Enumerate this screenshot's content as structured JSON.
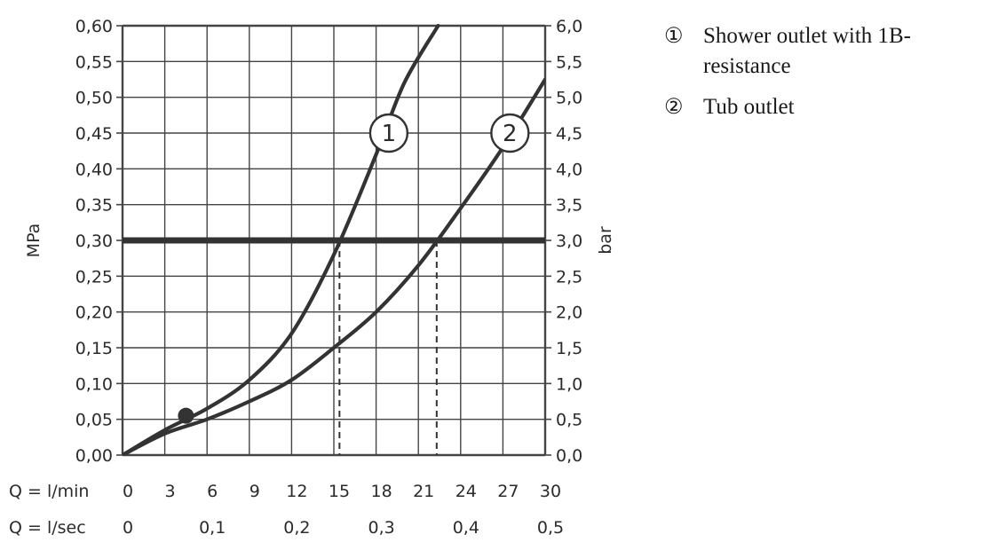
{
  "chart_data": {
    "type": "line",
    "ylabel_left": "MPa",
    "ylabel_right": "bar",
    "ylim": [
      0,
      0.6
    ],
    "xlim": [
      0,
      30
    ],
    "y_ticks_left": [
      "0,00",
      "0,05",
      "0,10",
      "0,15",
      "0,20",
      "0,25",
      "0,30",
      "0,35",
      "0,40",
      "0,45",
      "0,50",
      "0,55",
      "0,60"
    ],
    "y_ticks_right": [
      "0,0",
      "0,5",
      "1,0",
      "1,5",
      "2,0",
      "2,5",
      "3,0",
      "3,5",
      "4,0",
      "4,5",
      "5,0",
      "5,5",
      "6,0"
    ],
    "x_row1_label": "Q = l/min",
    "x_row1_ticks": [
      "0",
      "3",
      "6",
      "9",
      "12",
      "15",
      "18",
      "21",
      "24",
      "27",
      "30"
    ],
    "x_row2_label": "Q = l/sec",
    "x_row2_ticks": [
      {
        "label": "0",
        "x": 0
      },
      {
        "label": "0,1",
        "x": 6
      },
      {
        "label": "0,2",
        "x": 12
      },
      {
        "label": "0,3",
        "x": 18
      },
      {
        "label": "0,4",
        "x": 24
      },
      {
        "label": "0,5",
        "x": 30
      }
    ],
    "reference_line_y": 0.3,
    "flow_markers": [
      15.4,
      22.3
    ],
    "min_point": {
      "x": 4.5,
      "y": 0.055
    },
    "grid": true,
    "series": [
      {
        "name": "1",
        "color": "#333333",
        "x": [
          0,
          3,
          6,
          9,
          12,
          15,
          18,
          20,
          22.4
        ],
        "y": [
          0,
          0.035,
          0.065,
          0.105,
          0.17,
          0.28,
          0.42,
          0.52,
          0.6
        ]
      },
      {
        "name": "2",
        "color": "#333333",
        "x": [
          0,
          3,
          6,
          9,
          12,
          15,
          18,
          21,
          24,
          27,
          30
        ],
        "y": [
          0,
          0.03,
          0.05,
          0.075,
          0.105,
          0.15,
          0.2,
          0.265,
          0.345,
          0.43,
          0.525
        ]
      }
    ]
  },
  "legend": [
    {
      "marker": "①",
      "text": "Shower outlet with 1B-resistance"
    },
    {
      "marker": "②",
      "text": "Tub outlet"
    }
  ]
}
